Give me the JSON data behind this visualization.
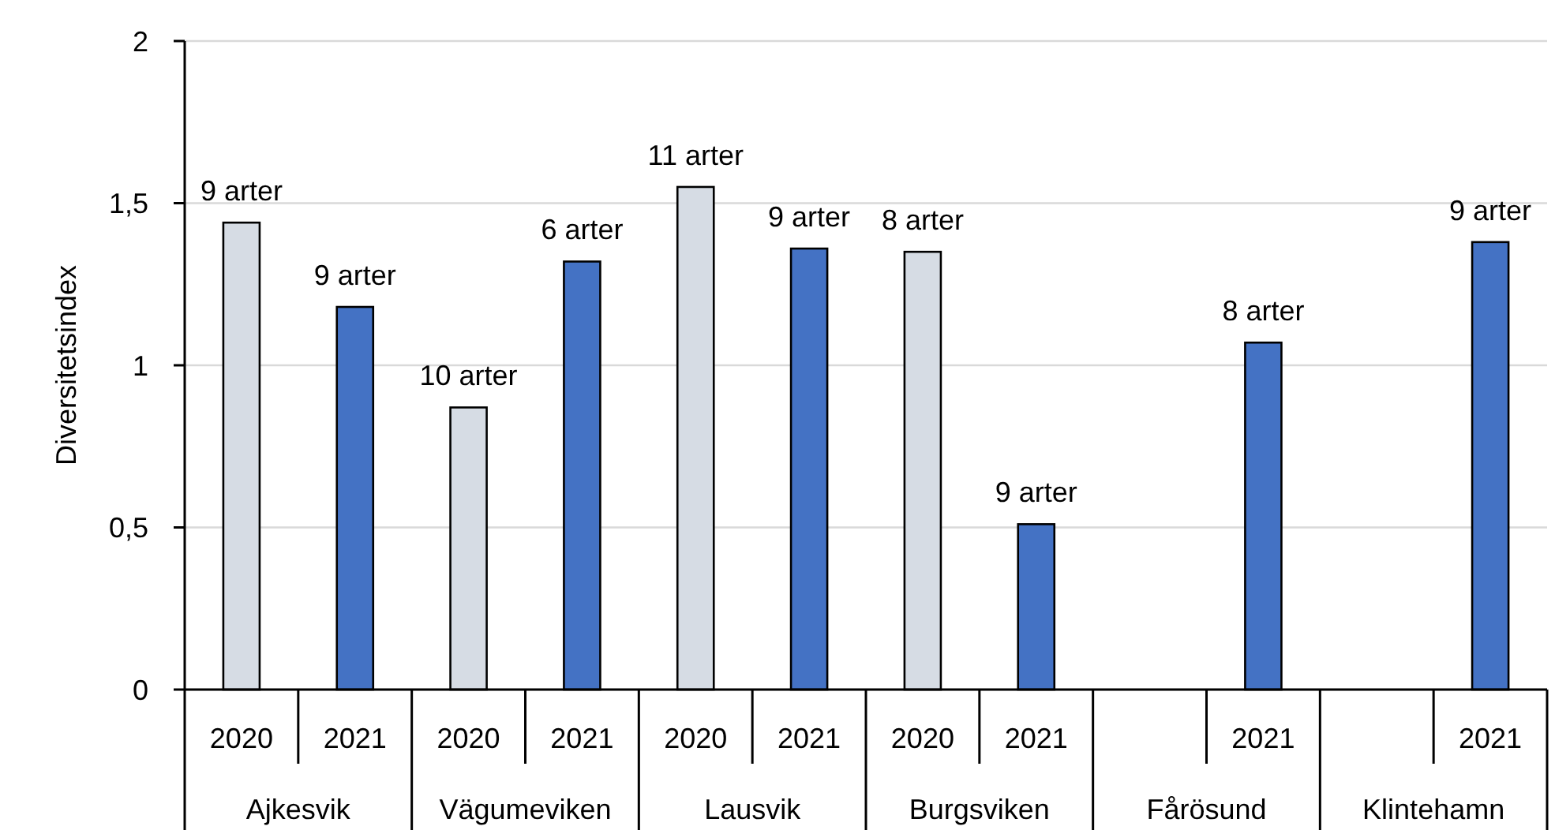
{
  "chart_data": {
    "type": "bar",
    "ylabel": "Diversitetsindex",
    "categories": [
      "Ajkesvik",
      "Vägumeviken",
      "Lausvik",
      "Burgsviken",
      "Fårösund",
      "Klintehamn"
    ],
    "series": [
      {
        "name": "2020",
        "color": "#d6dce4",
        "values": [
          1.44,
          0.87,
          1.55,
          1.35,
          null,
          null
        ]
      },
      {
        "name": "2021",
        "color": "#4472c4",
        "values": [
          1.18,
          1.32,
          1.36,
          0.51,
          1.07,
          1.38
        ]
      }
    ],
    "annotations": [
      "9 arter",
      "9 arter",
      "10 arter",
      "6 arter",
      "11 arter",
      "9 arter",
      "8 arter",
      "9 arter",
      "8 arter",
      "9 arter"
    ],
    "ylim": [
      0,
      2
    ],
    "yticks": [
      0,
      {
        "value": 0.5,
        "label": "0,5"
      },
      1,
      {
        "value": 1.5,
        "label": "1,5"
      },
      2
    ],
    "grid": "y"
  }
}
